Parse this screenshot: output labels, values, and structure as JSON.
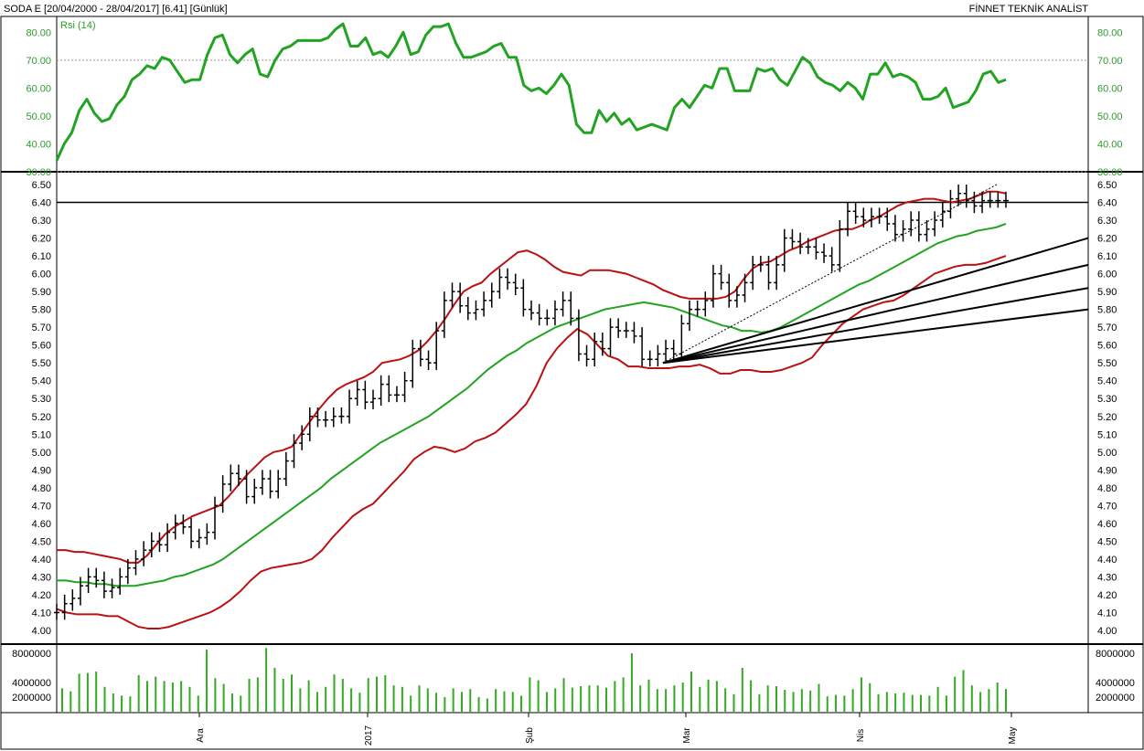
{
  "header": {
    "left": "SODA  E  [20/04/2000 - 28/04/2017]  [6.41]  [Günlük]",
    "right": "FİNNET TEKNİK ANALİST"
  },
  "colors": {
    "rsi": "#22a322",
    "ma": "#22a322",
    "band": "#bb1111",
    "bars": "#000000",
    "volume": "#33aa22"
  },
  "chart_data": [
    {
      "type": "line",
      "title": "Rsi (14)",
      "ylim": [
        30,
        85
      ],
      "yticks": [
        "80.00",
        "70.00",
        "60.00",
        "50.00",
        "40.00",
        "30.00"
      ],
      "reference_lines": [
        70,
        30
      ],
      "series": [
        {
          "name": "Rsi (14)",
          "values": [
            34,
            40,
            44,
            52,
            56,
            51,
            48,
            49,
            54,
            57,
            63,
            65,
            68,
            67,
            71,
            70,
            66,
            62,
            63,
            63,
            72,
            78,
            79,
            72,
            69,
            72,
            74,
            65,
            64,
            70,
            74,
            75,
            77,
            77,
            77,
            77,
            78,
            81,
            83,
            75,
            75,
            78,
            72,
            73,
            71,
            75,
            80,
            72,
            73,
            79,
            82,
            82,
            83,
            76,
            71,
            71,
            72,
            73,
            75,
            76,
            71,
            71,
            61,
            59,
            60,
            58,
            61,
            65,
            61,
            47,
            44,
            44,
            52,
            48,
            51,
            47,
            49,
            45,
            46,
            47,
            46,
            45,
            53,
            56,
            53,
            57,
            61,
            60,
            67,
            67,
            59,
            59,
            59,
            67,
            66,
            67,
            63,
            61,
            66,
            71,
            69,
            64,
            62,
            61,
            59,
            62,
            60,
            56,
            65,
            65,
            69,
            64,
            65,
            64,
            62,
            56,
            56,
            57,
            60,
            53,
            54,
            55,
            59,
            65,
            66,
            62,
            63
          ]
        }
      ]
    },
    {
      "type": "line",
      "title": "",
      "ylim": [
        3.95,
        6.53
      ],
      "yticks": [
        "6.50",
        "6.40",
        "6.30",
        "6.20",
        "6.10",
        "6.00",
        "5.90",
        "5.80",
        "5.70",
        "5.60",
        "5.50",
        "5.40",
        "5.30",
        "5.20",
        "5.10",
        "5.00",
        "4.90",
        "4.80",
        "4.70",
        "4.60",
        "4.50",
        "4.40",
        "4.30",
        "4.20",
        "4.10",
        "4.00"
      ],
      "xlabels": [
        "Ara",
        "2017",
        "Şub",
        "Mar",
        "Nis",
        "May"
      ],
      "horizontal_line": 6.4,
      "series": [
        {
          "name": "Close",
          "values": [
            4.1,
            4.15,
            4.18,
            4.25,
            4.3,
            4.28,
            4.22,
            4.24,
            4.3,
            4.35,
            4.4,
            4.45,
            4.5,
            4.48,
            4.55,
            4.6,
            4.58,
            4.5,
            4.52,
            4.55,
            4.7,
            4.82,
            4.88,
            4.85,
            4.75,
            4.8,
            4.85,
            4.78,
            4.85,
            4.95,
            5.05,
            5.1,
            5.2,
            5.18,
            5.18,
            5.2,
            5.2,
            5.3,
            5.35,
            5.28,
            5.3,
            5.38,
            5.32,
            5.32,
            5.4,
            5.58,
            5.52,
            5.5,
            5.68,
            5.85,
            5.9,
            5.82,
            5.78,
            5.8,
            5.85,
            5.9,
            5.98,
            5.95,
            5.92,
            5.8,
            5.78,
            5.75,
            5.75,
            5.8,
            5.85,
            5.75,
            5.55,
            5.52,
            5.62,
            5.58,
            5.7,
            5.68,
            5.68,
            5.65,
            5.52,
            5.52,
            5.55,
            5.58,
            5.55,
            5.72,
            5.8,
            5.8,
            5.85,
            6.0,
            5.95,
            5.85,
            5.88,
            5.95,
            6.05,
            6.05,
            5.95,
            6.05,
            6.2,
            6.18,
            6.15,
            6.15,
            6.12,
            6.1,
            6.05,
            6.25,
            6.35,
            6.32,
            6.3,
            6.32,
            6.32,
            6.28,
            6.22,
            6.25,
            6.3,
            6.22,
            6.25,
            6.3,
            6.35,
            6.42,
            6.45,
            6.41,
            6.38,
            6.41,
            6.41,
            6.41,
            6.41
          ]
        },
        {
          "name": "MA",
          "values": [
            4.28,
            4.28,
            4.27,
            4.27,
            4.26,
            4.26,
            4.25,
            4.25,
            4.25,
            4.26,
            4.27,
            4.28,
            4.3,
            4.31,
            4.33,
            4.35,
            4.37,
            4.4,
            4.44,
            4.48,
            4.52,
            4.56,
            4.6,
            4.64,
            4.68,
            4.72,
            4.76,
            4.8,
            4.85,
            4.89,
            4.93,
            4.97,
            5.01,
            5.05,
            5.08,
            5.11,
            5.14,
            5.17,
            5.2,
            5.24,
            5.28,
            5.32,
            5.36,
            5.41,
            5.46,
            5.5,
            5.54,
            5.57,
            5.61,
            5.64,
            5.67,
            5.7,
            5.72,
            5.74,
            5.76,
            5.78,
            5.8,
            5.81,
            5.82,
            5.83,
            5.84,
            5.83,
            5.82,
            5.81,
            5.79,
            5.77,
            5.75,
            5.73,
            5.71,
            5.7,
            5.68,
            5.68,
            5.67,
            5.68,
            5.7,
            5.73,
            5.76,
            5.79,
            5.82,
            5.85,
            5.88,
            5.91,
            5.94,
            5.96,
            5.99,
            6.02,
            6.05,
            6.08,
            6.11,
            6.14,
            6.17,
            6.19,
            6.21,
            6.22,
            6.24,
            6.25,
            6.26,
            6.28
          ]
        },
        {
          "name": "Upper band",
          "values": [
            4.45,
            4.45,
            4.44,
            4.44,
            4.43,
            4.42,
            4.41,
            4.4,
            4.38,
            4.38,
            4.42,
            4.48,
            4.54,
            4.58,
            4.61,
            4.64,
            4.66,
            4.68,
            4.7,
            4.75,
            4.81,
            4.87,
            4.92,
            4.97,
            5.0,
            5.01,
            5.03,
            5.1,
            5.17,
            5.24,
            5.3,
            5.35,
            5.38,
            5.4,
            5.42,
            5.45,
            5.5,
            5.51,
            5.52,
            5.54,
            5.57,
            5.62,
            5.68,
            5.75,
            5.83,
            5.9,
            5.93,
            5.95,
            6.0,
            6.04,
            6.08,
            6.12,
            6.13,
            6.11,
            6.08,
            6.04,
            6.01,
            6.0,
            5.99,
            6.02,
            6.02,
            6.02,
            6.01,
            6.0,
            5.98,
            5.96,
            5.94,
            5.91,
            5.89,
            5.87,
            5.86,
            5.86,
            5.86,
            5.86,
            5.87,
            5.9,
            5.97,
            6.03,
            6.06,
            6.07,
            6.1,
            6.13,
            6.15,
            6.18,
            6.2,
            6.22,
            6.24,
            6.25,
            6.25,
            6.27,
            6.3,
            6.32,
            6.35,
            6.38,
            6.4,
            6.41,
            6.42,
            6.42,
            6.41,
            6.4,
            6.41,
            6.42,
            6.44,
            6.46,
            6.46,
            6.45
          ]
        },
        {
          "name": "Lower band",
          "values": [
            4.12,
            4.1,
            4.09,
            4.09,
            4.09,
            4.08,
            4.08,
            4.05,
            4.02,
            4.01,
            4.01,
            4.02,
            4.04,
            4.06,
            4.08,
            4.1,
            4.13,
            4.17,
            4.22,
            4.28,
            4.33,
            4.35,
            4.36,
            4.37,
            4.38,
            4.4,
            4.45,
            4.52,
            4.58,
            4.64,
            4.68,
            4.71,
            4.77,
            4.83,
            4.89,
            4.96,
            5.0,
            5.03,
            5.02,
            5.0,
            5.02,
            5.06,
            5.08,
            5.11,
            5.16,
            5.21,
            5.27,
            5.37,
            5.5,
            5.58,
            5.64,
            5.69,
            5.66,
            5.6,
            5.54,
            5.52,
            5.48,
            5.48,
            5.47,
            5.47,
            5.47,
            5.48,
            5.48,
            5.49,
            5.47,
            5.44,
            5.44,
            5.46,
            5.46,
            5.45,
            5.45,
            5.46,
            5.48,
            5.5,
            5.53,
            5.6,
            5.66,
            5.72,
            5.76,
            5.8,
            5.82,
            5.84,
            5.85,
            5.88,
            5.92,
            5.96,
            6.0,
            6.02,
            6.04,
            6.05,
            6.05,
            6.06,
            6.08,
            6.1
          ]
        },
        {
          "name": "Trendline 1",
          "values": [
            5.5,
            6.2
          ]
        },
        {
          "name": "Trendline 2",
          "values": [
            5.5,
            6.05
          ]
        },
        {
          "name": "Trendline 3",
          "values": [
            5.5,
            5.92
          ]
        },
        {
          "name": "Trendline 4",
          "values": [
            5.5,
            5.8
          ]
        },
        {
          "name": "Dotted channel",
          "values": [
            5.5,
            6.5
          ]
        }
      ]
    },
    {
      "type": "bar",
      "title": "",
      "ylim": [
        0,
        9000000
      ],
      "yticks": [
        "8000000",
        "4000000",
        "2000000"
      ],
      "series": [
        {
          "name": "Volume",
          "values": [
            3200000,
            2800000,
            5200000,
            5300000,
            5500000,
            3400000,
            2500000,
            2200000,
            2100000,
            5000000,
            4200000,
            4800000,
            4200000,
            4000000,
            4200000,
            3400000,
            2200000,
            8500000,
            4600000,
            3800000,
            2500000,
            2200000,
            4500000,
            4700000,
            8700000,
            6000000,
            4500000,
            5100000,
            3200000,
            4300000,
            2700000,
            3400000,
            5100000,
            4500000,
            3200000,
            2600000,
            4600000,
            4800000,
            5000000,
            3600000,
            3400000,
            2200000,
            3600000,
            3200000,
            2600000,
            2000000,
            3200000,
            2700000,
            3100000,
            2000000,
            1800000,
            3100000,
            2800000,
            2700000,
            2200000,
            4700000,
            4300000,
            2700000,
            3200000,
            4600000,
            3300000,
            3500000,
            3600000,
            3600000,
            3300000,
            4200000,
            4700000,
            8000000,
            3600000,
            4400000,
            3100000,
            3100000,
            3600000,
            4000000,
            5500000,
            3400000,
            4400000,
            4200000,
            3200000,
            2400000,
            6000000,
            4300000,
            2400000,
            3600000,
            3500000,
            3000000,
            2700000,
            3100000,
            2900000,
            3800000,
            2100000,
            2300000,
            2200000,
            3100000,
            4700000,
            3900000,
            2400000,
            2700000,
            2500000,
            2600000,
            2300000,
            2300000,
            2200000,
            3400000,
            2200000,
            4800000,
            5700000,
            3600000,
            2700000,
            3100000,
            4000000,
            3100000
          ]
        }
      ]
    }
  ]
}
